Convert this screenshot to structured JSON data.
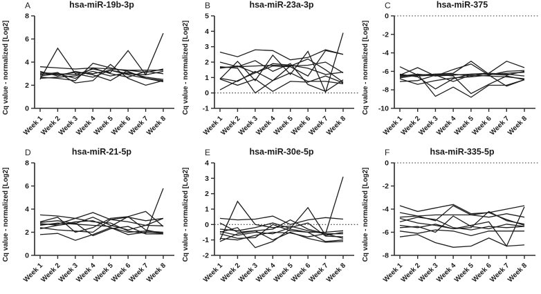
{
  "figure": {
    "line_color": "#1c1c1c",
    "axis_color": "#2a2a2a",
    "x_tick_count": 8
  },
  "chart_data": [
    {
      "type": "line",
      "panel": "A",
      "title": "hsa-miR-19b-3p",
      "xlabel": "",
      "ylabel": "Cq value - normalized [Log2]",
      "categories": [
        "Week 1",
        "Week 2",
        "Week 3",
        "Week 4",
        "Week 5",
        "Week 6",
        "Week 7",
        "Week 8"
      ],
      "ylim": [
        0,
        8
      ],
      "yticks": [
        0,
        2,
        4,
        6,
        8
      ],
      "zero_line": false,
      "legend": "none",
      "grid": false,
      "series": [
        [
          3.6,
          3.5,
          3.4,
          3.5,
          3.4,
          3.3,
          3.3,
          3.3
        ],
        [
          2.5,
          5.2,
          3.0,
          2.7,
          3.3,
          2.9,
          2.6,
          2.4
        ],
        [
          3.1,
          3.0,
          2.9,
          3.4,
          3.1,
          5.0,
          2.9,
          3.2
        ],
        [
          3.0,
          2.9,
          3.1,
          3.0,
          3.3,
          3.0,
          2.9,
          6.5
        ],
        [
          2.7,
          2.6,
          2.4,
          3.9,
          3.5,
          3.2,
          2.6,
          2.3
        ],
        [
          2.9,
          3.1,
          2.2,
          2.4,
          3.8,
          2.6,
          2.0,
          2.4
        ],
        [
          3.2,
          2.8,
          3.2,
          2.9,
          2.4,
          3.3,
          3.1,
          3.4
        ],
        [
          2.8,
          3.0,
          2.6,
          3.5,
          3.0,
          2.7,
          3.2,
          3.0
        ],
        [
          2.6,
          2.7,
          2.8,
          3.2,
          2.8,
          3.1,
          2.7,
          2.5
        ]
      ]
    },
    {
      "type": "line",
      "panel": "B",
      "title": "hsa-miR-23a-3p",
      "xlabel": "",
      "ylabel": "Cq value - normalized [Log2]",
      "categories": [
        "Week 1",
        "Week 2",
        "Week 3",
        "Week 4",
        "Week 5",
        "Week 6",
        "Week 7",
        "Week 8"
      ],
      "ylim": [
        -1,
        5
      ],
      "yticks": [
        -1,
        0,
        1,
        2,
        3,
        4,
        5
      ],
      "zero_line": true,
      "legend": "none",
      "grid": false,
      "series": [
        [
          2.65,
          2.35,
          2.8,
          2.75,
          2.15,
          2.3,
          2.8,
          2.5
        ],
        [
          0.9,
          2.05,
          0.8,
          2.45,
          1.2,
          2.7,
          0.05,
          3.9
        ],
        [
          1.65,
          1.7,
          1.75,
          1.8,
          1.75,
          1.8,
          2.0,
          1.3
        ],
        [
          1.6,
          1.75,
          1.3,
          1.75,
          1.7,
          1.1,
          2.75,
          2.5
        ],
        [
          0.95,
          0.75,
          1.4,
          0.8,
          1.75,
          2.2,
          1.5,
          0.7
        ],
        [
          0.2,
          0.8,
          1.3,
          1.9,
          1.8,
          1.6,
          1.2,
          1.35
        ],
        [
          1.7,
          1.6,
          0.0,
          0.8,
          1.3,
          0.75,
          0.75,
          0.6
        ],
        [
          0.9,
          0.5,
          0.9,
          0.1,
          0.75,
          0.7,
          1.1,
          0.65
        ],
        [
          2.0,
          1.7,
          2.1,
          1.4,
          1.9,
          0.55,
          0.1,
          0.85
        ]
      ]
    },
    {
      "type": "line",
      "panel": "C",
      "title": "hsa-miR-375",
      "xlabel": "",
      "ylabel": "Cq value - normalized [Log2]",
      "categories": [
        "Week 1",
        "Week 2",
        "Week 3",
        "Week 4",
        "Week 5",
        "Week 6",
        "Week 7",
        "Week 8"
      ],
      "ylim": [
        -10,
        0
      ],
      "yticks": [
        0,
        -2,
        -4,
        -6,
        -8,
        -10
      ],
      "zero_line": true,
      "legend": "none",
      "grid": false,
      "series": [
        [
          -5.5,
          -6.4,
          -6.3,
          -6.2,
          -4.9,
          -6.3,
          -6.4,
          -6.0
        ],
        [
          -6.4,
          -5.6,
          -6.5,
          -6.4,
          -6.3,
          -6.2,
          -4.9,
          -5.6
        ],
        [
          -6.5,
          -6.3,
          -8.7,
          -7.7,
          -8.8,
          -7.5,
          -7.5,
          -6.9
        ],
        [
          -6.7,
          -6.4,
          -6.3,
          -6.5,
          -8.4,
          -7.4,
          -6.5,
          -6.9
        ],
        [
          -6.3,
          -6.6,
          -7.9,
          -6.8,
          -6.3,
          -6.3,
          -6.2,
          -6.1
        ],
        [
          -7.1,
          -7.0,
          -6.4,
          -7.1,
          -6.4,
          -6.5,
          -6.6,
          -6.8
        ],
        [
          -6.6,
          -6.3,
          -6.5,
          -5.8,
          -5.2,
          -6.4,
          -6.0,
          -5.9
        ],
        [
          -6.8,
          -7.4,
          -7.0,
          -6.7,
          -6.6,
          -6.4,
          -7.6,
          -6.9
        ],
        [
          -6.4,
          -6.5,
          -6.4,
          -6.3,
          -6.5,
          -6.2,
          -6.3,
          -6.5
        ]
      ]
    },
    {
      "type": "line",
      "panel": "D",
      "title": "hsa-miR-21-5p",
      "xlabel": "",
      "ylabel": "Cq value - normalized [Log2]",
      "categories": [
        "Week 1",
        "Week 2",
        "Week 3",
        "Week 4",
        "Week 5",
        "Week 6",
        "Week 7",
        "Week 8"
      ],
      "ylim": [
        0,
        8
      ],
      "yticks": [
        0,
        2,
        4,
        6,
        8
      ],
      "zero_line": false,
      "legend": "none",
      "grid": false,
      "series": [
        [
          3.5,
          3.4,
          3.2,
          3.7,
          3.1,
          3.3,
          3.0,
          3.2
        ],
        [
          2.9,
          3.3,
          2.0,
          2.4,
          3.2,
          3.35,
          3.8,
          2.5
        ],
        [
          2.7,
          2.7,
          3.2,
          2.9,
          2.8,
          2.1,
          1.9,
          5.8
        ],
        [
          2.6,
          2.8,
          2.7,
          2.6,
          2.5,
          3.35,
          2.2,
          1.9
        ],
        [
          2.3,
          2.6,
          2.8,
          1.7,
          2.3,
          2.5,
          1.85,
          1.85
        ],
        [
          1.8,
          1.9,
          1.3,
          1.8,
          2.4,
          1.8,
          2.0,
          1.9
        ],
        [
          2.75,
          2.6,
          2.9,
          3.0,
          2.4,
          2.0,
          2.1,
          2.0
        ],
        [
          2.4,
          2.2,
          2.1,
          2.0,
          3.1,
          2.9,
          2.6,
          2.55
        ],
        [
          2.85,
          3.0,
          2.75,
          3.3,
          2.6,
          2.2,
          2.6,
          3.2
        ]
      ]
    },
    {
      "type": "line",
      "panel": "E",
      "title": "hsa-miR-30e-5p",
      "xlabel": "",
      "ylabel": "Cq value - normalized [Log2]",
      "categories": [
        "Week 1",
        "Week 2",
        "Week 3",
        "Week 4",
        "Week 5",
        "Week 6",
        "Week 7",
        "Week 8"
      ],
      "ylim": [
        -2,
        4
      ],
      "yticks": [
        -2,
        -1,
        0,
        1,
        2,
        3,
        4
      ],
      "zero_line": true,
      "legend": "none",
      "grid": false,
      "series": [
        [
          0.4,
          0.3,
          0.35,
          0.55,
          0.0,
          0.3,
          0.45,
          0.35
        ],
        [
          -1.0,
          1.5,
          0.0,
          -0.2,
          -0.1,
          -0.4,
          -0.6,
          -0.9
        ],
        [
          -0.3,
          -0.4,
          -0.2,
          0.1,
          -0.25,
          1.1,
          -0.7,
          -0.5
        ],
        [
          0.1,
          -0.5,
          -0.4,
          -0.3,
          0.3,
          -0.3,
          -0.6,
          3.1
        ],
        [
          -0.5,
          -0.2,
          -1.5,
          -1.1,
          -0.3,
          -0.5,
          -0.5,
          -0.4
        ],
        [
          -0.45,
          -0.7,
          -0.5,
          -0.6,
          -0.2,
          0.1,
          -0.75,
          -0.8
        ],
        [
          -0.6,
          -0.9,
          -0.85,
          0.0,
          -0.4,
          -0.5,
          -1.1,
          -1.0
        ],
        [
          -0.9,
          -1.0,
          -0.7,
          -0.5,
          -0.55,
          -0.8,
          -0.6,
          -0.6
        ],
        [
          -1.1,
          -0.6,
          -0.4,
          -1.0,
          -0.5,
          -0.9,
          -1.15,
          -1.1
        ]
      ]
    },
    {
      "type": "line",
      "panel": "F",
      "title": "hsa-miR-335-5p",
      "xlabel": "",
      "ylabel": "Cq value - normalized [Log2]",
      "categories": [
        "Week 1",
        "Week 2",
        "Week 3",
        "Week 4",
        "Week 5",
        "Week 6",
        "Week 7",
        "Week 8"
      ],
      "ylim": [
        -8,
        0
      ],
      "yticks": [
        0,
        -2,
        -4,
        -6,
        -8
      ],
      "zero_line": true,
      "legend": "none",
      "grid": false,
      "series": [
        [
          -3.7,
          -4.2,
          -3.9,
          -3.6,
          -4.4,
          -4.3,
          -4.0,
          -3.7
        ],
        [
          -4.3,
          -4.6,
          -5.0,
          -3.7,
          -4.5,
          -4.3,
          -4.9,
          -5.4
        ],
        [
          -4.7,
          -4.6,
          -4.5,
          -4.5,
          -4.5,
          -4.7,
          -4.4,
          -4.7
        ],
        [
          -4.8,
          -5.2,
          -5.4,
          -5.7,
          -5.6,
          -4.2,
          -5.0,
          -5.3
        ],
        [
          -5.1,
          -4.7,
          -4.9,
          -5.6,
          -5.8,
          -5.5,
          -5.6,
          -5.5
        ],
        [
          -5.4,
          -5.6,
          -5.3,
          -5.7,
          -5.4,
          -5.1,
          -7.2,
          -3.8
        ],
        [
          -5.6,
          -5.5,
          -6.0,
          -4.6,
          -5.5,
          -5.7,
          -5.3,
          -5.5
        ],
        [
          -5.9,
          -6.1,
          -5.8,
          -5.9,
          -6.3,
          -5.9,
          -5.9,
          -5.9
        ],
        [
          -6.4,
          -6.2,
          -6.9,
          -7.3,
          -7.2,
          -6.5,
          -7.2,
          -7.1
        ]
      ]
    }
  ]
}
